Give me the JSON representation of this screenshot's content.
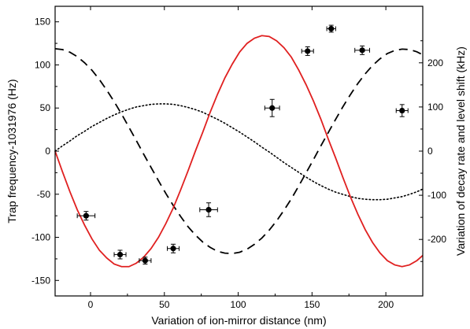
{
  "chart_data": {
    "type": "scatter",
    "xlabel": "Variation of ion-mirror distance (nm)",
    "ylabel": "Trap frequency-1031976 (Hz)",
    "y2label": "Variation of decay rate and level shift (kHz)",
    "xlim": [
      -24,
      225
    ],
    "ylim": [
      -168,
      168
    ],
    "y2lim": [
      -328,
      328
    ],
    "x_ticks": [
      0,
      50,
      100,
      150,
      200
    ],
    "y_ticks": [
      -150,
      -100,
      -50,
      0,
      50,
      100,
      150
    ],
    "y2_ticks": [
      -200,
      -100,
      0,
      100,
      200
    ],
    "grid": false,
    "legend": "none",
    "measurements": {
      "name": "",
      "marker": "filled-circle",
      "x": [
        -3,
        20,
        37,
        56,
        80,
        123,
        147,
        163,
        184,
        211
      ],
      "y": [
        -75,
        -120,
        -127,
        -113,
        -68,
        50,
        116,
        142,
        117,
        47
      ],
      "x_err": [
        6,
        4,
        4,
        4,
        6,
        5,
        4,
        3,
        5,
        4
      ],
      "y_err": [
        5,
        5,
        4,
        5,
        8,
        10,
        5,
        4,
        5,
        7
      ]
    },
    "fit": {
      "name": "",
      "color": "#e02020",
      "style": "solid",
      "x": [
        -24,
        -19,
        -14,
        -9,
        -4,
        1,
        6,
        11,
        16,
        21,
        26,
        31,
        36,
        41,
        46,
        51,
        56,
        61,
        66,
        71,
        76,
        81,
        86,
        91,
        96,
        101,
        106,
        111,
        116,
        121,
        126,
        131,
        136,
        141,
        146,
        151,
        156,
        161,
        166,
        171,
        176,
        181,
        186,
        191,
        196,
        201,
        206,
        211,
        216,
        221,
        225
      ],
      "y": [
        0,
        -24,
        -47,
        -68,
        -86,
        -102,
        -115,
        -124,
        -131,
        -134,
        -134,
        -130,
        -123,
        -113,
        -100,
        -84,
        -66,
        -45,
        -23,
        0,
        22,
        45,
        66,
        85,
        101,
        115,
        125,
        131,
        134,
        133,
        128,
        120,
        109,
        94,
        77,
        58,
        37,
        14,
        -8,
        -31,
        -53,
        -73,
        -91,
        -106,
        -118,
        -127,
        -132,
        -134,
        -132,
        -127,
        -121
      ]
    },
    "dashed_curve": {
      "name": "",
      "color": "#000000",
      "style": "dashed",
      "axis": "right",
      "x": [
        -24,
        -19,
        -14,
        -9,
        -4,
        1,
        6,
        11,
        16,
        21,
        26,
        31,
        36,
        41,
        46,
        51,
        56,
        61,
        66,
        71,
        76,
        81,
        86,
        91,
        96,
        101,
        106,
        111,
        116,
        121,
        126,
        131,
        136,
        141,
        146,
        151,
        156,
        161,
        166,
        171,
        176,
        181,
        186,
        191,
        196,
        201,
        206,
        211,
        216,
        221,
        225
      ],
      "y": [
        232,
        230,
        224,
        214,
        200,
        183,
        162,
        138,
        112,
        84,
        54,
        24,
        -7,
        -37,
        -67,
        -96,
        -123,
        -148,
        -171,
        -190,
        -206,
        -218,
        -227,
        -231,
        -232,
        -229,
        -222,
        -211,
        -197,
        -179,
        -158,
        -134,
        -108,
        -79,
        -49,
        -19,
        12,
        42,
        72,
        101,
        128,
        153,
        175,
        194,
        209,
        221,
        228,
        231,
        230,
        225,
        218
      ]
    },
    "dotted_curve": {
      "name": "",
      "color": "#000000",
      "style": "dotted",
      "axis": "right",
      "x": [
        -24,
        -19,
        -14,
        -9,
        -4,
        1,
        6,
        11,
        16,
        21,
        26,
        31,
        36,
        41,
        46,
        51,
        56,
        61,
        66,
        71,
        76,
        81,
        86,
        91,
        96,
        101,
        106,
        111,
        116,
        121,
        126,
        131,
        136,
        141,
        146,
        151,
        156,
        161,
        166,
        171,
        176,
        181,
        186,
        191,
        196,
        201,
        206,
        211,
        216,
        221,
        225
      ],
      "y": [
        0,
        12,
        23,
        35,
        45,
        56,
        65,
        74,
        82,
        89,
        95,
        100,
        103,
        106,
        107,
        107,
        106,
        103,
        99,
        94,
        88,
        80,
        72,
        63,
        53,
        43,
        32,
        21,
        9,
        -2,
        -14,
        -26,
        -37,
        -48,
        -59,
        -69,
        -78,
        -86,
        -93,
        -98,
        -103,
        -107,
        -109,
        -110,
        -110,
        -109,
        -106,
        -103,
        -98,
        -92,
        -86
      ]
    }
  }
}
